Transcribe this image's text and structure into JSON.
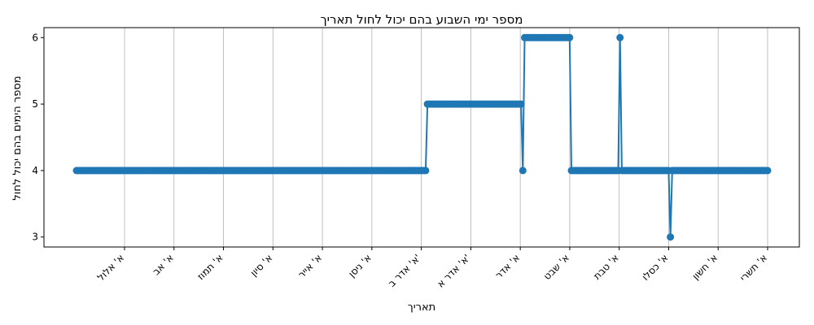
{
  "chart_data": {
    "type": "line",
    "title": "מספר ימי השבוע בהם יכול לחול תאריך",
    "xlabel": "תאריך",
    "ylabel": "מספר הימים בהם יכול לחול",
    "x_tick_labels": [
      "א' אלול",
      "א' אב",
      "א' תמוז",
      "א' סיון",
      "א' אייר",
      "א' ניסן",
      "א' אדר ב'",
      "א' אדר א'",
      "א' אדר",
      "א' שבט",
      "א' טבת",
      "א' כסלו",
      "א' חשון",
      "א' תשרי"
    ],
    "y_ticks": [
      3,
      4,
      5,
      6
    ],
    "ylim": [
      2.85,
      6.15
    ],
    "grid": "vertical",
    "color": "#1f77b4",
    "x_axis_order": "right-to-left",
    "day_span": 384,
    "series": [
      {
        "segments": [
          {
            "from_day": 0,
            "to_day": 104,
            "value": 4
          },
          {
            "from_day": 105,
            "to_day": 109,
            "value": 4
          },
          {
            "from_day": 110,
            "to_day": 135,
            "value": 6
          },
          {
            "from_day": 136,
            "to_day": 137,
            "value": 4
          },
          {
            "from_day": 138,
            "to_day": 189,
            "value": 5
          },
          {
            "from_day": 190,
            "to_day": 384,
            "value": 4
          }
        ],
        "points": [
          {
            "day": 54,
            "value": 3
          },
          {
            "day": 82,
            "value": 6
          },
          {
            "day": 83,
            "value": 4
          },
          {
            "day": 136,
            "value": 4
          },
          {
            "day": 137,
            "value": 5
          }
        ],
        "note_days": "Day 0 = א' תשרי at right edge; days increase leftward."
      }
    ]
  }
}
